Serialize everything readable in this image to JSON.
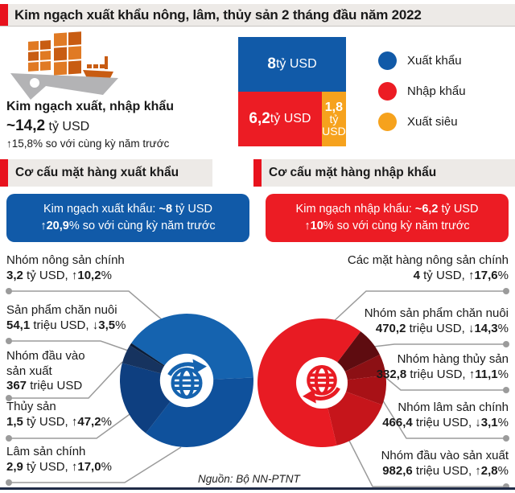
{
  "title": "Kim ngạch xuất khẩu nông, lâm, thủy sản 2 tháng đầu năm 2022",
  "summary": {
    "label": "Kim ngạch xuất, nhập khẩu",
    "value_runs": [
      [
        "b",
        "~14,2"
      ],
      [
        "r",
        " tỷ USD"
      ]
    ],
    "change": "↑15,8% so với cùng kỳ năm trước"
  },
  "sections": {
    "export_header": "Cơ cấu mặt hàng xuất khẩu",
    "import_header": "Cơ cấu mặt hàng nhập khẩu",
    "export_box": {
      "line1_runs": [
        [
          "r",
          "Kim ngạch xuất khẩu: "
        ],
        [
          "b",
          "~8"
        ],
        [
          "r",
          " tỷ USD"
        ]
      ],
      "line2_runs": [
        [
          "b",
          "↑20,9"
        ],
        [
          "r",
          "% so với cùng kỳ năm trước"
        ]
      ]
    },
    "import_box": {
      "line1_runs": [
        [
          "r",
          "Kim ngạch nhập khẩu: "
        ],
        [
          "b",
          "~6,2"
        ],
        [
          "r",
          " tỷ USD"
        ]
      ],
      "line2_runs": [
        [
          "b",
          "↑10"
        ],
        [
          "r",
          "% so với cùng kỳ năm trước"
        ]
      ]
    }
  },
  "chart_data": [
    {
      "type": "bar",
      "title": "Kim ngạch xuất, nhập khẩu 2 tháng đầu năm 2022",
      "categories": [
        "Xuất khẩu",
        "Nhập khẩu",
        "Xuất siêu"
      ],
      "values_billion_usd": [
        8,
        6.2,
        1.8
      ],
      "colors": [
        "#115AA8",
        "#EC1C24",
        "#F6A21D"
      ],
      "block_labels": {
        "blue_runs": [
          [
            "b",
            "8"
          ],
          [
            "r",
            " tỷ USD"
          ]
        ],
        "red_runs": [
          [
            "b",
            "6,2"
          ],
          [
            "r",
            " tỷ USD"
          ]
        ],
        "yellow_line1_runs": [
          [
            "b",
            "1,8"
          ]
        ],
        "yellow_line2": "tỷ",
        "yellow_line3": "USD"
      }
    },
    {
      "type": "pie",
      "title": "Cơ cấu mặt hàng xuất khẩu",
      "total_billion_usd": 8,
      "start_angle_deg": -56,
      "draw_order": [
        0,
        4,
        3,
        2,
        1
      ],
      "segments": [
        {
          "label": "Nhóm nông sản chính",
          "value_text_runs": [
            [
              "b",
              "3,2"
            ],
            [
              "r",
              " tỷ USD, "
            ],
            [
              "b",
              "↑10,2"
            ],
            [
              "r",
              "%"
            ]
          ],
          "value_million_usd": 3200,
          "change_pct": 10.2,
          "color": "#1563AF"
        },
        {
          "label": "Sản phẩm chăn nuôi",
          "value_text_runs": [
            [
              "b",
              "54,1"
            ],
            [
              "r",
              " triệu USD, "
            ],
            [
              "b",
              "↓3,5"
            ],
            [
              "r",
              "%"
            ]
          ],
          "value_million_usd": 54.1,
          "change_pct": -3.5,
          "color": "#0A1C38"
        },
        {
          "label": "Nhóm đầu vào sản xuất",
          "value_text_runs": [
            [
              "b",
              "367"
            ],
            [
              "r",
              " triệu USD"
            ]
          ],
          "value_million_usd": 367,
          "change_pct": null,
          "color": "#16335F"
        },
        {
          "label": "Thủy sản",
          "value_text_runs": [
            [
              "b",
              "1,5"
            ],
            [
              "r",
              " tỷ USD, "
            ],
            [
              "b",
              "↑47,2"
            ],
            [
              "r",
              "%"
            ]
          ],
          "value_million_usd": 1500,
          "change_pct": 47.2,
          "color": "#0E3F80"
        },
        {
          "label": "Lâm sản chính",
          "value_text_runs": [
            [
              "b",
              "2,9"
            ],
            [
              "r",
              " tỷ USD, "
            ],
            [
              "b",
              "↑17,0"
            ],
            [
              "r",
              "%"
            ]
          ],
          "value_million_usd": 2900,
          "change_pct": 17.0,
          "color": "#0F519C"
        }
      ]
    },
    {
      "type": "pie",
      "title": "Cơ cấu mặt hàng nhập khẩu",
      "total_billion_usd": 6.2,
      "start_angle_deg": 37,
      "draw_order": [
        1,
        2,
        3,
        4,
        0
      ],
      "segments": [
        {
          "label": "Các mặt hàng nông sản chính",
          "value_text_runs": [
            [
              "b",
              "4"
            ],
            [
              "r",
              " tỷ USD, "
            ],
            [
              "b",
              "↑17,6"
            ],
            [
              "r",
              "%"
            ]
          ],
          "value_million_usd": 4000,
          "change_pct": 17.6,
          "color": "#E81B23"
        },
        {
          "label": "Nhóm sản phẩm chăn nuôi",
          "value_text_runs": [
            [
              "b",
              "470,2"
            ],
            [
              "r",
              " triệu USD, "
            ],
            [
              "b",
              "↓14,3"
            ],
            [
              "r",
              "%"
            ]
          ],
          "value_million_usd": 470.2,
          "change_pct": -14.3,
          "color": "#5E0C10"
        },
        {
          "label": "Nhóm hàng thủy sản",
          "value_text_runs": [
            [
              "b",
              "332,8"
            ],
            [
              "r",
              " triệu USD, "
            ],
            [
              "b",
              "↑11,1"
            ],
            [
              "r",
              "%"
            ]
          ],
          "value_million_usd": 332.8,
          "change_pct": 11.1,
          "color": "#8C1014"
        },
        {
          "label": "Nhóm lâm sản chính",
          "value_text_runs": [
            [
              "b",
              "466,4"
            ],
            [
              "r",
              " triệu USD, "
            ],
            [
              "b",
              "↓3,1"
            ],
            [
              "r",
              "%"
            ]
          ],
          "value_million_usd": 466.4,
          "change_pct": -3.1,
          "color": "#A81116"
        },
        {
          "label": "Nhóm đầu vào sản xuất",
          "value_text_runs": [
            [
              "b",
              "982,6"
            ],
            [
              "r",
              " triệu USD, "
            ],
            [
              "b",
              "↑2,8"
            ],
            [
              "r",
              "%"
            ]
          ],
          "value_million_usd": 982.6,
          "change_pct": 2.8,
          "color": "#C6151B"
        }
      ]
    }
  ],
  "source": "Nguồn: Bộ NN-PTNT"
}
